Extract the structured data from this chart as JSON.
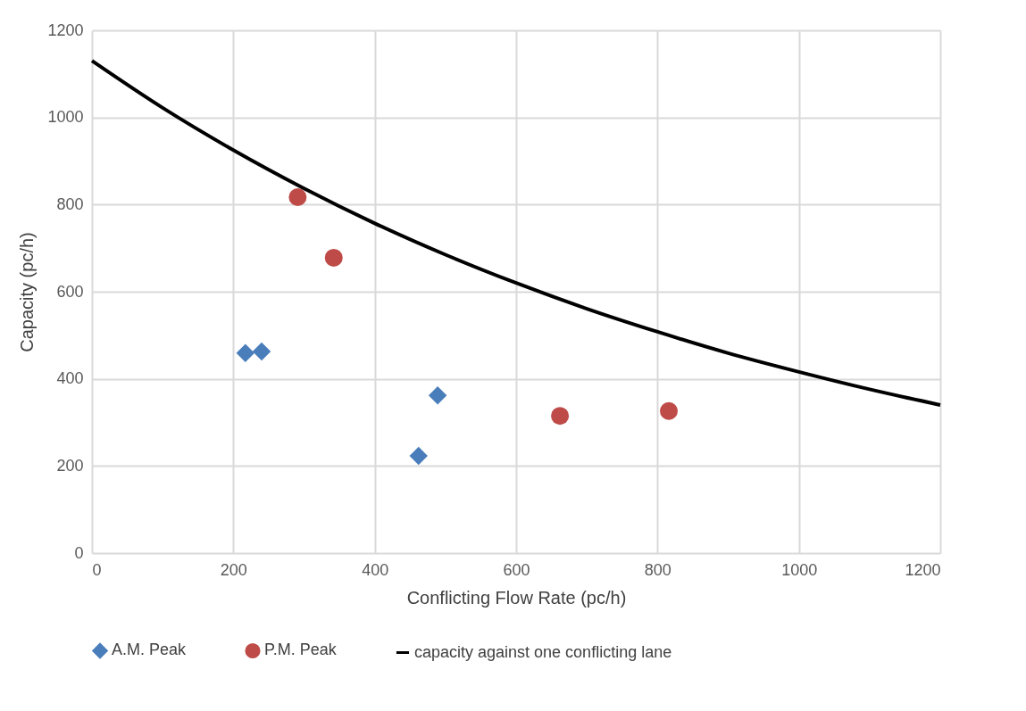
{
  "chart_data": {
    "type": "scatter",
    "xlabel": "Conflicting Flow Rate (pc/h)",
    "ylabel": "Capacity (pc/h)",
    "xlim": [
      0,
      1200
    ],
    "xticks": [
      0,
      200,
      400,
      600,
      800,
      1000,
      1200
    ],
    "ylim": [
      0,
      1200
    ],
    "yticks": [
      0,
      200,
      400,
      600,
      800,
      1000,
      1200
    ],
    "grid": true,
    "legend": "bottom",
    "series": [
      {
        "name": "A.M. Peak",
        "marker": "diamond",
        "color": "#4a7ebb",
        "x": [
          217,
          240,
          489,
          462
        ],
        "values": [
          459,
          463,
          362,
          223
        ]
      },
      {
        "name": "P.M. Peak",
        "marker": "circle",
        "color": "#be4b48",
        "x": [
          291,
          342,
          662,
          816
        ],
        "values": [
          817,
          678,
          315,
          326
        ]
      },
      {
        "name": "capacity against one conflicting lane",
        "type": "line",
        "marker": "none",
        "line_style": "solid",
        "color": "#000000",
        "x": [
          0,
          100,
          200,
          300,
          400,
          500,
          600,
          700,
          800,
          900,
          1000,
          1100,
          1200
        ],
        "values": [
          1130,
          1022,
          925,
          837,
          757,
          685,
          620,
          561,
          508,
          459,
          416,
          376,
          340
        ]
      }
    ]
  }
}
